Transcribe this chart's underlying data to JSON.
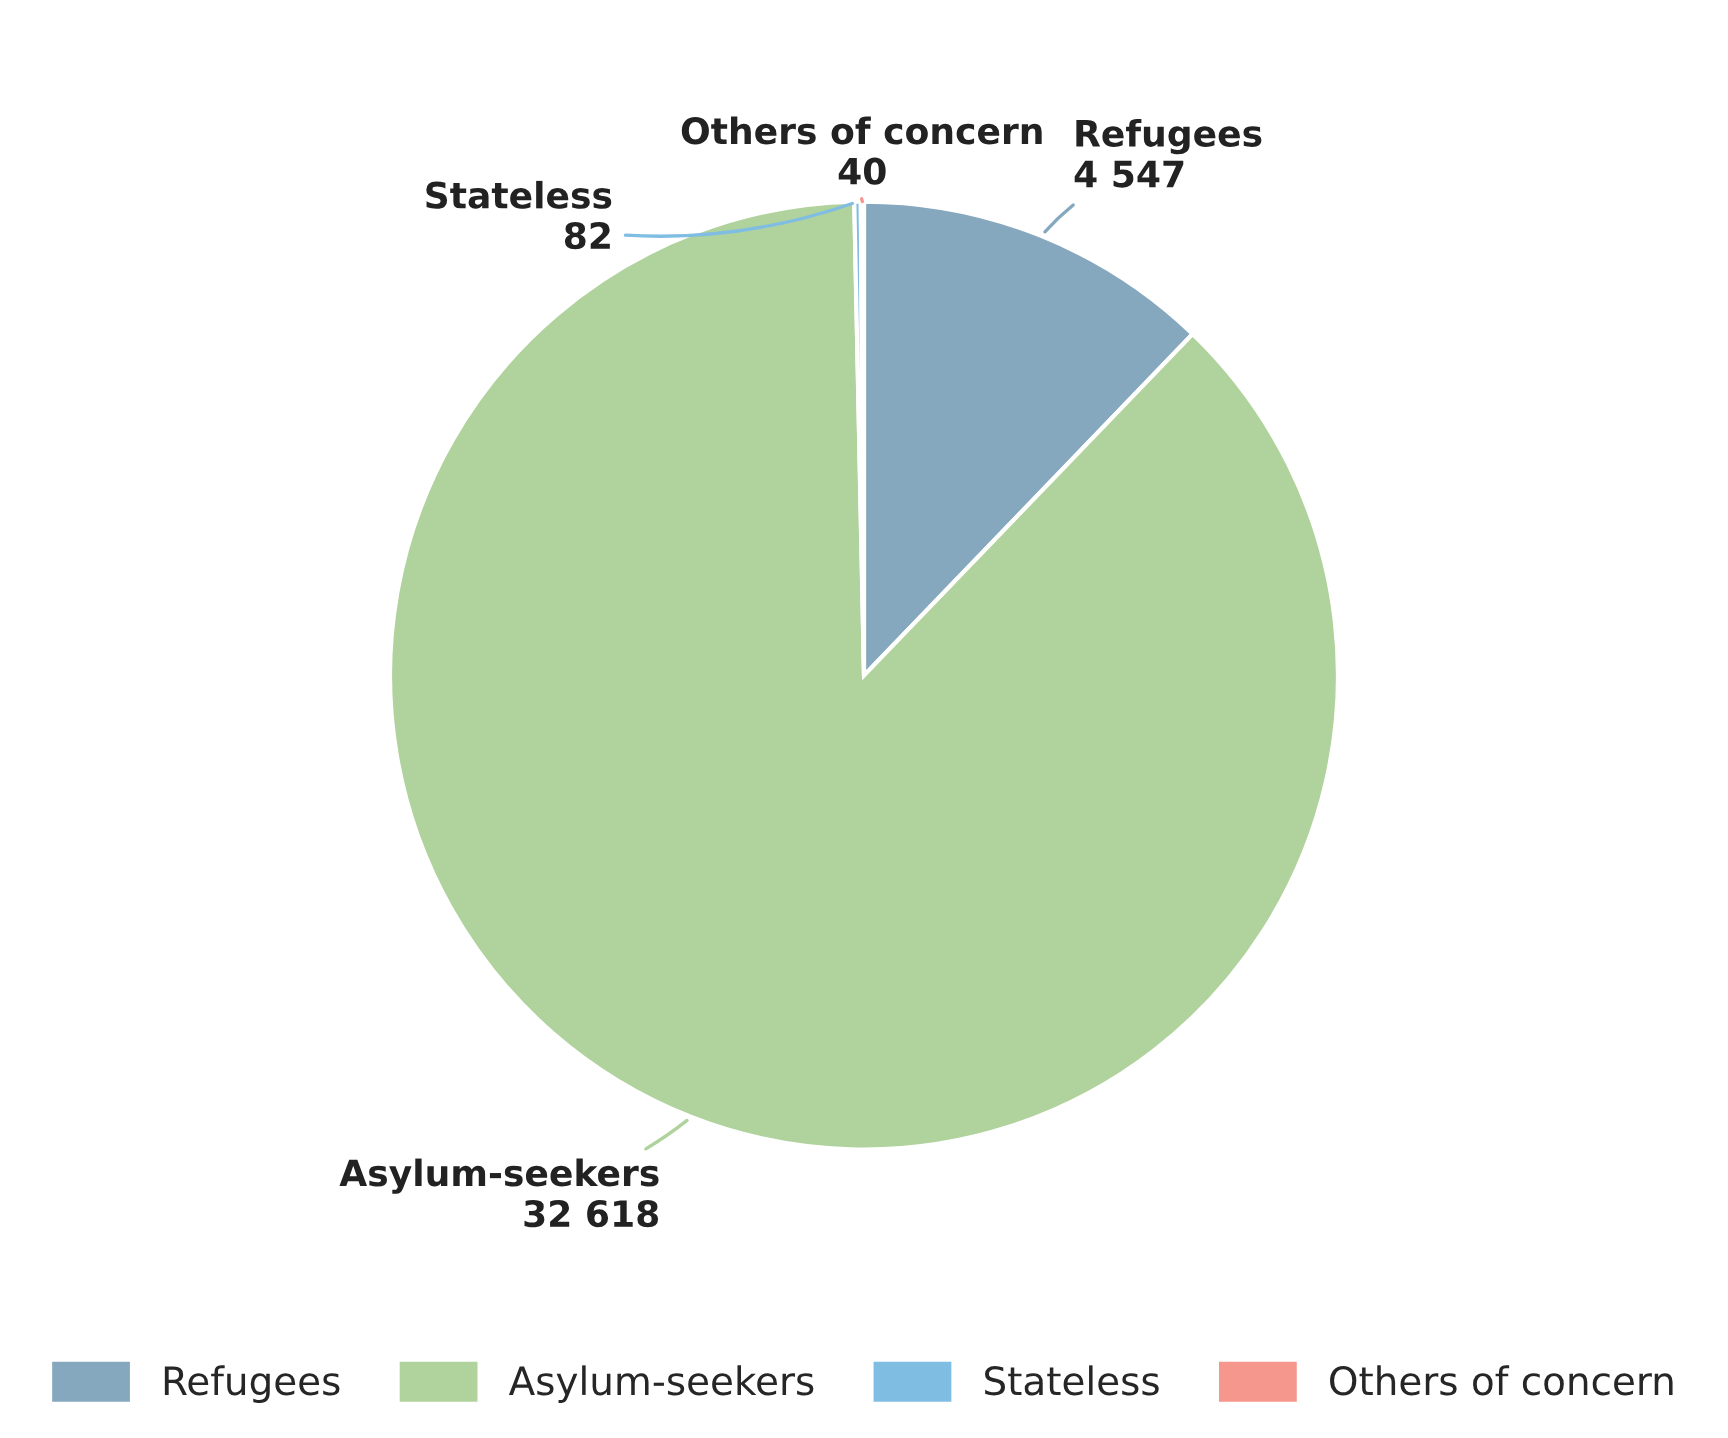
{
  "chart_data": {
    "type": "pie",
    "categories": [
      "Refugees",
      "Asylum-seekers",
      "Stateless",
      "Others of concern"
    ],
    "values": [
      4547,
      32618,
      82,
      40
    ],
    "value_labels": [
      "4 547",
      "32 618",
      "82",
      "40"
    ],
    "colors": [
      "#86a8bf",
      "#b0d29c",
      "#80bde2",
      "#f5978c"
    ],
    "legend": "bottom"
  }
}
